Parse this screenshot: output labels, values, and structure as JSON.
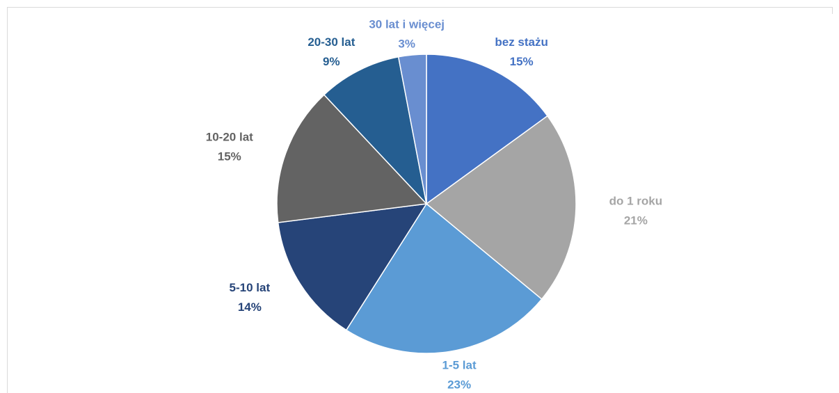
{
  "chart_data": {
    "type": "pie",
    "categories": [
      "bez stażu",
      "do 1 roku",
      "1-5 lat",
      "5-10 lat",
      "10-20 lat",
      "20-30 lat",
      "30 lat i więcej"
    ],
    "values": [
      15,
      21,
      23,
      14,
      15,
      9,
      3
    ],
    "value_labels": [
      "15%",
      "21%",
      "23%",
      "14%",
      "15%",
      "9%",
      "3%"
    ],
    "colors": [
      "#4472c4",
      "#a5a5a5",
      "#5b9bd5",
      "#264478",
      "#636363",
      "#255e91",
      "#698ed0"
    ]
  }
}
